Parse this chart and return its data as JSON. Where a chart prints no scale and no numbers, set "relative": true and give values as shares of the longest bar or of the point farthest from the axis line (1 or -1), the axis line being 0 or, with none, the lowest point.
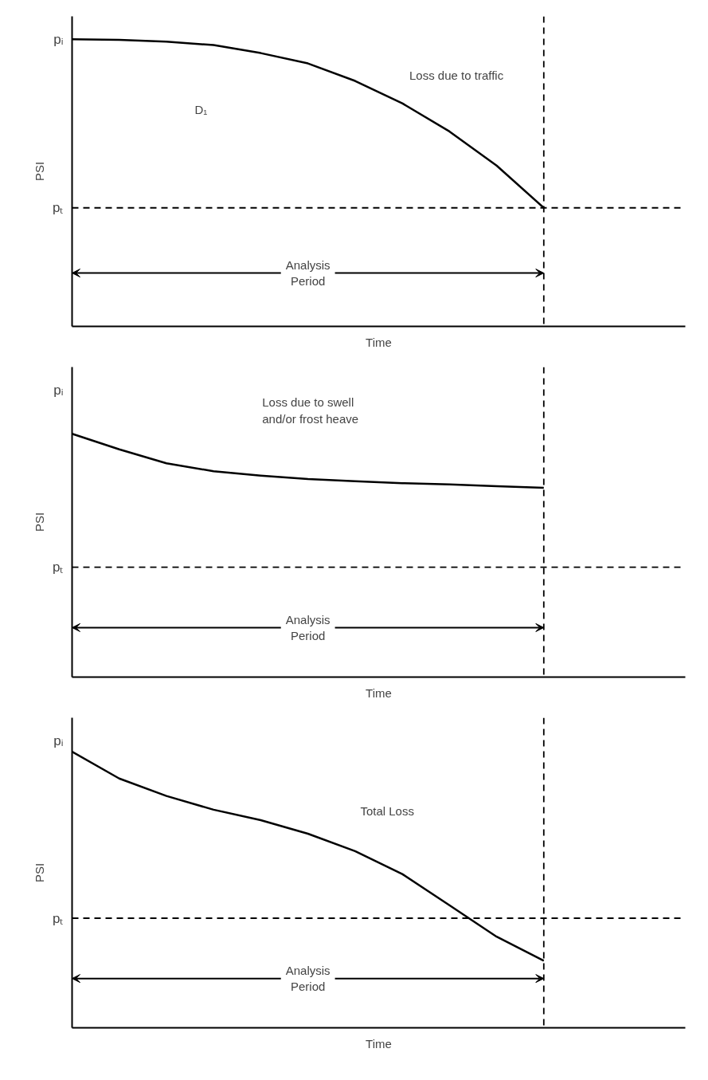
{
  "chart_data": [
    {
      "type": "line",
      "relative": true,
      "ylabel": "PSI",
      "xlabel": "Time",
      "grid": false,
      "line_style": "solid",
      "categories": [
        null,
        null,
        null,
        null,
        null,
        null,
        null,
        null,
        null,
        null,
        null,
        null,
        null,
        null
      ],
      "series": [
        {
          "color": "#000000",
          "values": [
            1,
            0.998,
            0.992,
            0.98,
            0.952,
            0.916,
            0.855,
            0.777,
            0.679,
            0.56,
            0.413,
            null,
            null,
            null
          ]
        }
      ],
      "ref_lines": [
        {
          "axis": "y",
          "value": 0.413,
          "label": "pₜ",
          "line_style": "dashed"
        },
        {
          "axis": "x",
          "line_style": "dashed"
        }
      ],
      "annotations": [
        "pᵢ",
        "D₁",
        "Loss due to traffic",
        "Analysis\nPeriod"
      ]
    },
    {
      "type": "line",
      "relative": true,
      "ylabel": "PSI",
      "xlabel": "Time",
      "grid": false,
      "line_style": "solid",
      "categories": [
        null,
        null,
        null,
        null,
        null,
        null,
        null,
        null,
        null,
        null,
        null,
        null,
        null,
        null
      ],
      "series": [
        {
          "color": "#000000",
          "values": [
            1,
            0.936,
            0.879,
            0.846,
            0.828,
            0.814,
            0.805,
            0.797,
            0.792,
            0.785,
            0.778,
            null,
            null,
            null
          ]
        }
      ],
      "ref_lines": [
        {
          "axis": "y",
          "value": 0.452,
          "label": "pₜ",
          "line_style": "dashed"
        },
        {
          "axis": "x",
          "line_style": "dashed"
        }
      ],
      "annotations": [
        "pᵢ",
        "Loss due to swell\nand/or frost heave",
        "Analysis\nPeriod"
      ]
    },
    {
      "type": "line",
      "relative": true,
      "ylabel": "PSI",
      "xlabel": "Time",
      "grid": false,
      "line_style": "solid",
      "categories": [
        null,
        null,
        null,
        null,
        null,
        null,
        null,
        null,
        null,
        null,
        null,
        null,
        null,
        null
      ],
      "series": [
        {
          "color": "#000000",
          "values": [
            1,
            0.903,
            0.84,
            0.79,
            0.752,
            0.703,
            0.64,
            0.557,
            0.444,
            0.33,
            0.243,
            null,
            null,
            null
          ]
        }
      ],
      "ref_lines": [
        {
          "axis": "y",
          "value": 0.397,
          "label": "pₜ",
          "line_style": "dashed"
        },
        {
          "axis": "x",
          "line_style": "dashed"
        }
      ],
      "annotations": [
        "pᵢ",
        "Total Loss",
        "Analysis\nPeriod"
      ]
    }
  ]
}
